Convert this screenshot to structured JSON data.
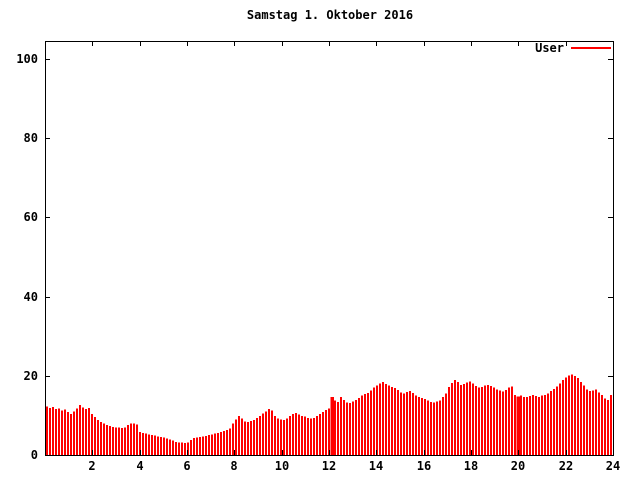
{
  "title": "Samstag 1. Oktober 2016",
  "legend": {
    "label": "User"
  },
  "colors": {
    "bar": "#ff0000",
    "axis": "#000000",
    "background": "#ffffff",
    "text": "#000000"
  },
  "chart_data": {
    "type": "bar",
    "title": "Samstag 1. Oktober 2016",
    "series_name": "User",
    "x_unit": "hour_of_day",
    "x_range": [
      0,
      24
    ],
    "y_range": [
      0,
      104.5
    ],
    "x_ticks": [
      2,
      4,
      6,
      8,
      10,
      12,
      14,
      16,
      18,
      20,
      22,
      24
    ],
    "y_ticks": [
      0,
      20,
      40,
      60,
      80,
      100
    ],
    "grid": false,
    "legend_position": "top-right-inside",
    "bar_color": "#ff0000",
    "wide_bar_indices": [
      95,
      157
    ],
    "values": [
      12.3,
      11.9,
      12.1,
      11.6,
      11.8,
      11.3,
      11.5,
      10.8,
      10.4,
      11.0,
      11.7,
      12.6,
      12.0,
      11.6,
      11.9,
      10.4,
      9.6,
      8.9,
      8.3,
      7.9,
      7.6,
      7.3,
      7.1,
      7.0,
      6.9,
      6.8,
      7.0,
      7.6,
      8.0,
      7.9,
      7.7,
      5.8,
      5.6,
      5.4,
      5.2,
      5.0,
      4.9,
      4.7,
      4.6,
      4.4,
      4.2,
      3.9,
      3.6,
      3.3,
      3.2,
      3.1,
      3.0,
      3.2,
      3.8,
      4.3,
      4.4,
      4.5,
      4.7,
      4.8,
      5.0,
      5.2,
      5.4,
      5.6,
      5.8,
      6.0,
      6.3,
      6.7,
      8.0,
      9.0,
      9.8,
      9.2,
      8.5,
      8.3,
      8.6,
      8.9,
      9.3,
      9.9,
      10.5,
      11.0,
      11.6,
      11.3,
      9.9,
      9.2,
      9.0,
      8.9,
      9.2,
      9.9,
      10.4,
      10.6,
      10.2,
      9.9,
      9.7,
      9.4,
      9.2,
      9.4,
      9.8,
      10.3,
      10.8,
      11.4,
      11.8,
      14.6,
      13.8,
      13.4,
      14.6,
      13.9,
      13.3,
      13.1,
      13.5,
      13.9,
      14.4,
      15.0,
      15.4,
      15.7,
      16.3,
      17.0,
      17.5,
      18.1,
      18.4,
      17.9,
      17.6,
      17.2,
      16.9,
      16.4,
      15.8,
      15.5,
      15.9,
      16.2,
      15.6,
      15.0,
      14.7,
      14.4,
      14.1,
      13.7,
      13.4,
      13.2,
      13.5,
      13.8,
      14.6,
      15.5,
      17.2,
      18.2,
      18.9,
      18.4,
      17.7,
      17.9,
      18.3,
      18.5,
      18.1,
      17.4,
      17.0,
      17.2,
      17.5,
      17.7,
      17.4,
      17.0,
      16.6,
      16.3,
      16.0,
      16.4,
      17.0,
      17.3,
      15.2,
      14.8,
      15.0,
      14.7,
      14.6,
      14.9,
      15.2,
      14.9,
      14.7,
      15.0,
      15.2,
      15.5,
      16.1,
      16.7,
      17.3,
      18.1,
      19.0,
      19.6,
      20.1,
      20.3,
      19.9,
      19.5,
      18.4,
      17.5,
      16.6,
      16.1,
      16.3,
      16.6,
      15.8,
      15.1,
      14.3,
      13.9,
      15.2
    ]
  }
}
